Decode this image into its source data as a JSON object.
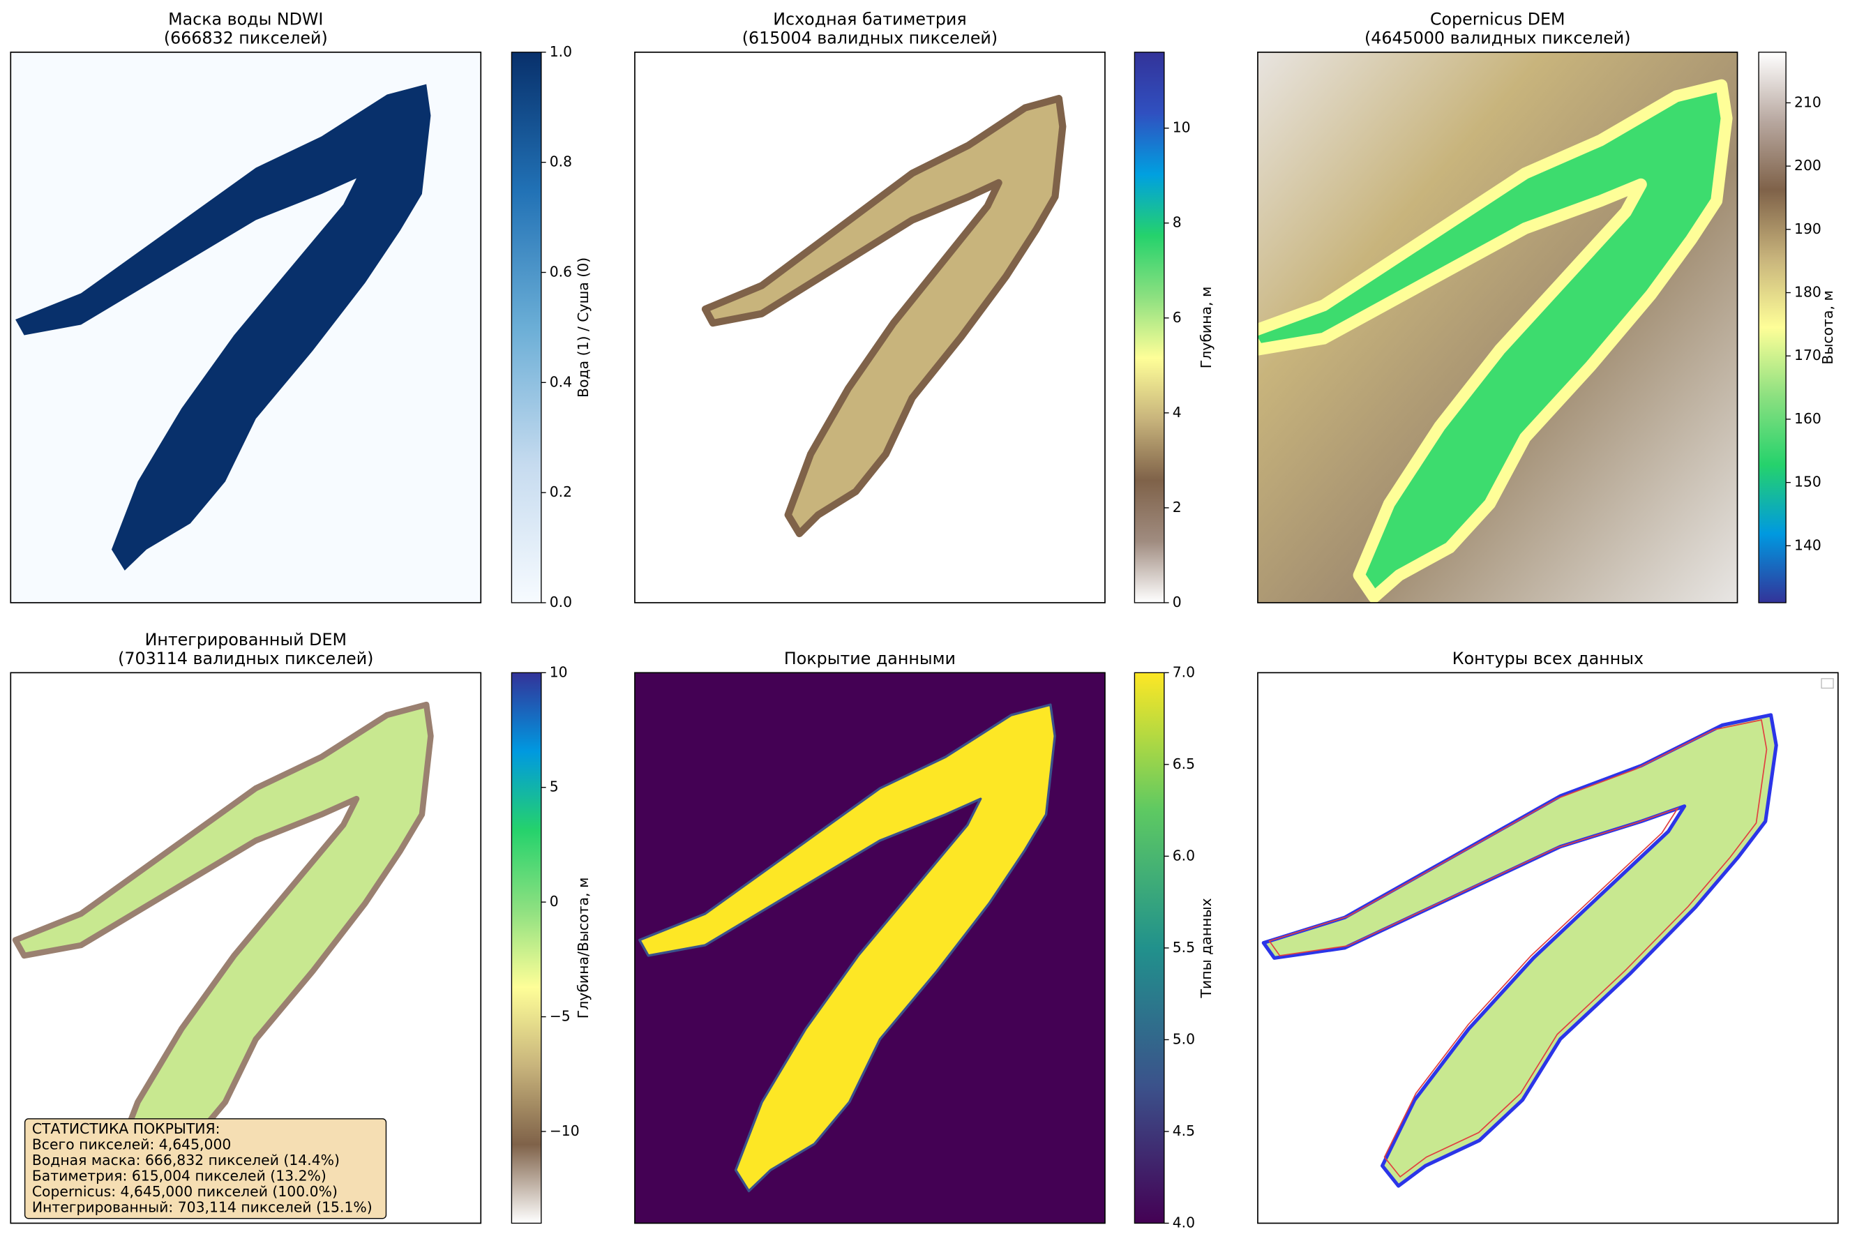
{
  "chart_data": [
    {
      "type": "image",
      "title": "Маска воды NDWI",
      "subtitle": "(666832 пикселей)",
      "colorbar": {
        "label": "Вода (1) / Суша (0)",
        "lim": [
          0,
          1
        ],
        "ticks": [
          {
            "value": 0,
            "label": "0.0"
          },
          {
            "value": 0.2,
            "label": "0.2"
          },
          {
            "value": 0.4,
            "label": "0.4"
          },
          {
            "value": 0.6,
            "label": "0.6"
          },
          {
            "value": 0.8,
            "label": "0.8"
          },
          {
            "value": 1,
            "label": "1.0"
          }
        ],
        "colors": [
          "#f7fbff",
          "#c6dbef",
          "#6baed6",
          "#2171b5",
          "#08306b"
        ]
      }
    },
    {
      "type": "image",
      "title": "Исходная батиметрия",
      "subtitle": "(615004 валидных пикселей)",
      "colorbar": {
        "label": "Глубина, м",
        "lim": [
          0,
          11.6
        ],
        "ticks": [
          0,
          2,
          4,
          6,
          8,
          10
        ],
        "colors": [
          "#ffffff",
          "#a08c80",
          "#7f6249",
          "#c8b47c",
          "#fefe98",
          "#8ce080",
          "#25d26c",
          "#00a0e0",
          "#3050c0",
          "#333399"
        ]
      }
    },
    {
      "type": "image",
      "title": "Copernicus DEM",
      "subtitle": "(4645000 валидных пикселей)",
      "colorbar": {
        "label": "Высота, м",
        "lim": [
          131,
          218
        ],
        "ticks": [
          140,
          150,
          160,
          170,
          180,
          190,
          200,
          210
        ],
        "colors": [
          "#333399",
          "#0099e0",
          "#25d26c",
          "#8ce080",
          "#fefe98",
          "#c8b47c",
          "#7f6249",
          "#b8a8a0",
          "#ffffff"
        ]
      }
    },
    {
      "type": "image",
      "title": "Интегрированный DEM",
      "subtitle": "(703114 валидных пикселей)",
      "colorbar": {
        "label": "Глубина/Высота, м",
        "lim": [
          -14,
          10
        ],
        "ticks": [
          {
            "value": -10,
            "label": "−10"
          },
          {
            "value": -5,
            "label": "−5"
          },
          0,
          5,
          10
        ],
        "colors": [
          "#ffffff",
          "#7f6249",
          "#c8b47c",
          "#fefe98",
          "#8ce080",
          "#25d26c",
          "#0099e0",
          "#333399"
        ]
      },
      "annotation": [
        "СТАТИСТИКА ПОКРЫТИЯ:",
        "Всего пикселей: 4,645,000",
        "Водная маска: 666,832 пикселей (14.4%)",
        "Батиметрия: 615,004 пикселей (13.2%)",
        "Copernicus: 4,645,000 пикселей (100.0%)",
        "Интегрированный: 703,114 пикселей (15.1%)"
      ]
    },
    {
      "type": "image",
      "title": "Покрытие данными",
      "colorbar": {
        "label": "Типы данных",
        "lim": [
          4,
          7
        ],
        "ticks": [
          {
            "value": 4,
            "label": "4.0"
          },
          {
            "value": 4.5,
            "label": "4.5"
          },
          {
            "value": 5,
            "label": "5.0"
          },
          {
            "value": 5.5,
            "label": "5.5"
          },
          {
            "value": 6,
            "label": "6.0"
          },
          {
            "value": 6.5,
            "label": "6.5"
          },
          {
            "value": 7,
            "label": "7.0"
          }
        ],
        "colors": [
          "#440154",
          "#3b528b",
          "#21918c",
          "#5ec962",
          "#fde725"
        ]
      }
    },
    {
      "type": "image",
      "title": "Контуры всех данных"
    }
  ]
}
